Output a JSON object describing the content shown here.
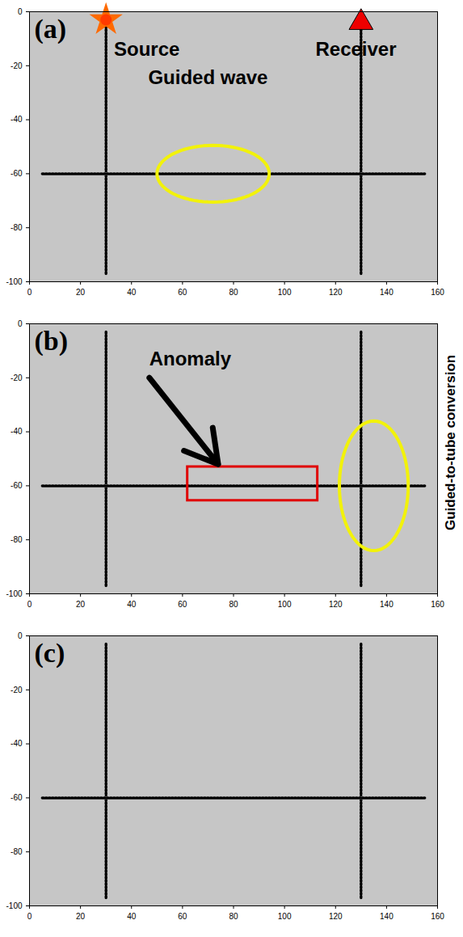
{
  "chart_data": [
    {
      "type": "image",
      "title": "(a)",
      "xlim": [
        0,
        160
      ],
      "xticks": [
        0,
        20,
        40,
        60,
        80,
        100,
        120,
        140,
        160
      ],
      "ylim": [
        -100,
        0
      ],
      "yticks": [
        0,
        -20,
        -40,
        -60,
        -80,
        -100
      ],
      "lines": [
        {
          "x": [
            30,
            30
          ],
          "y": [
            -97,
            -3
          ]
        },
        {
          "x": [
            130,
            130
          ],
          "y": [
            -97,
            -3
          ]
        },
        {
          "x": [
            5,
            155
          ],
          "y": [
            -60,
            -60
          ]
        }
      ],
      "markers": [
        {
          "marker": "star",
          "x": 30,
          "y": -3
        },
        {
          "marker": "triangle",
          "x": 130,
          "y": -4
        }
      ],
      "shapes": [
        {
          "shape": "ellipse",
          "x": 72,
          "y": -60,
          "rx": 22,
          "ry": 10.5
        }
      ],
      "annotations": [
        {
          "text": "Source",
          "x": 46,
          "y": -14
        },
        {
          "text": "Receiver",
          "x": 128,
          "y": -14
        },
        {
          "text": "Guided wave",
          "x": 70,
          "y": -24.5
        }
      ]
    },
    {
      "type": "image",
      "title": "(b)",
      "xlim": [
        0,
        160
      ],
      "xticks": [
        0,
        20,
        40,
        60,
        80,
        100,
        120,
        140,
        160
      ],
      "ylim": [
        -100,
        0
      ],
      "yticks": [
        0,
        -20,
        -40,
        -60,
        -80,
        -100
      ],
      "lines": [
        {
          "x": [
            30,
            30
          ],
          "y": [
            -97,
            -3
          ]
        },
        {
          "x": [
            130,
            130
          ],
          "y": [
            -97,
            -3
          ]
        },
        {
          "x": [
            5,
            155
          ],
          "y": [
            -60,
            -60
          ]
        }
      ],
      "shapes": [
        {
          "shape": "rect",
          "x1": 62,
          "x2": 113,
          "y1": -65.5,
          "y2": -53
        },
        {
          "shape": "ellipse",
          "x": 135,
          "y": -60,
          "rx": 13.5,
          "ry": 24
        },
        {
          "shape": "arrow",
          "x1": 47,
          "y1": -20,
          "x2": 74,
          "y2": -52
        }
      ],
      "annotations": [
        {
          "text": "Anomaly",
          "x": 63,
          "y": -13
        },
        {
          "text": "Guided-to-tube conversion",
          "x": 165,
          "y": -44,
          "orientation": "vertical"
        }
      ]
    },
    {
      "type": "image",
      "title": "(c)",
      "xlim": [
        0,
        160
      ],
      "xticks": [
        0,
        20,
        40,
        60,
        80,
        100,
        120,
        140,
        160
      ],
      "ylim": [
        -100,
        0
      ],
      "yticks": [
        0,
        -20,
        -40,
        -60,
        -80,
        -100
      ],
      "lines": [
        {
          "x": [
            30,
            30
          ],
          "y": [
            -97,
            -3
          ]
        },
        {
          "x": [
            130,
            130
          ],
          "y": [
            -97,
            -3
          ]
        },
        {
          "x": [
            5,
            155
          ],
          "y": [
            -60,
            -60
          ]
        }
      ]
    }
  ]
}
